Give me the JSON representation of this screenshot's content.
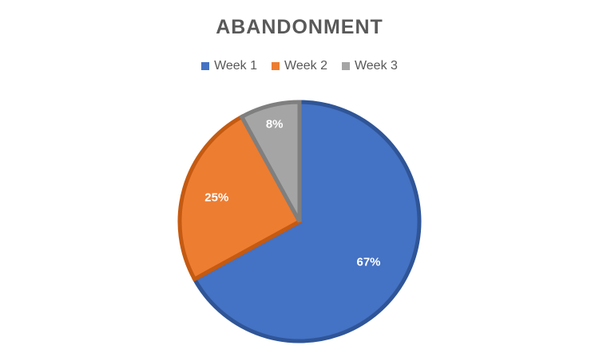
{
  "chart_data": {
    "type": "pie",
    "title": "ABANDONMENT",
    "legend_position": "top",
    "series": [
      {
        "name": "Week 1",
        "value": 67,
        "label": "67%",
        "color": "#4472C4",
        "border": "#2F5597"
      },
      {
        "name": "Week 2",
        "value": 25,
        "label": "25%",
        "color": "#ED7D31",
        "border": "#C55A11"
      },
      {
        "name": "Week 3",
        "value": 8,
        "label": "8%",
        "color": "#A5A5A5",
        "border": "#7F7F7F"
      }
    ]
  }
}
